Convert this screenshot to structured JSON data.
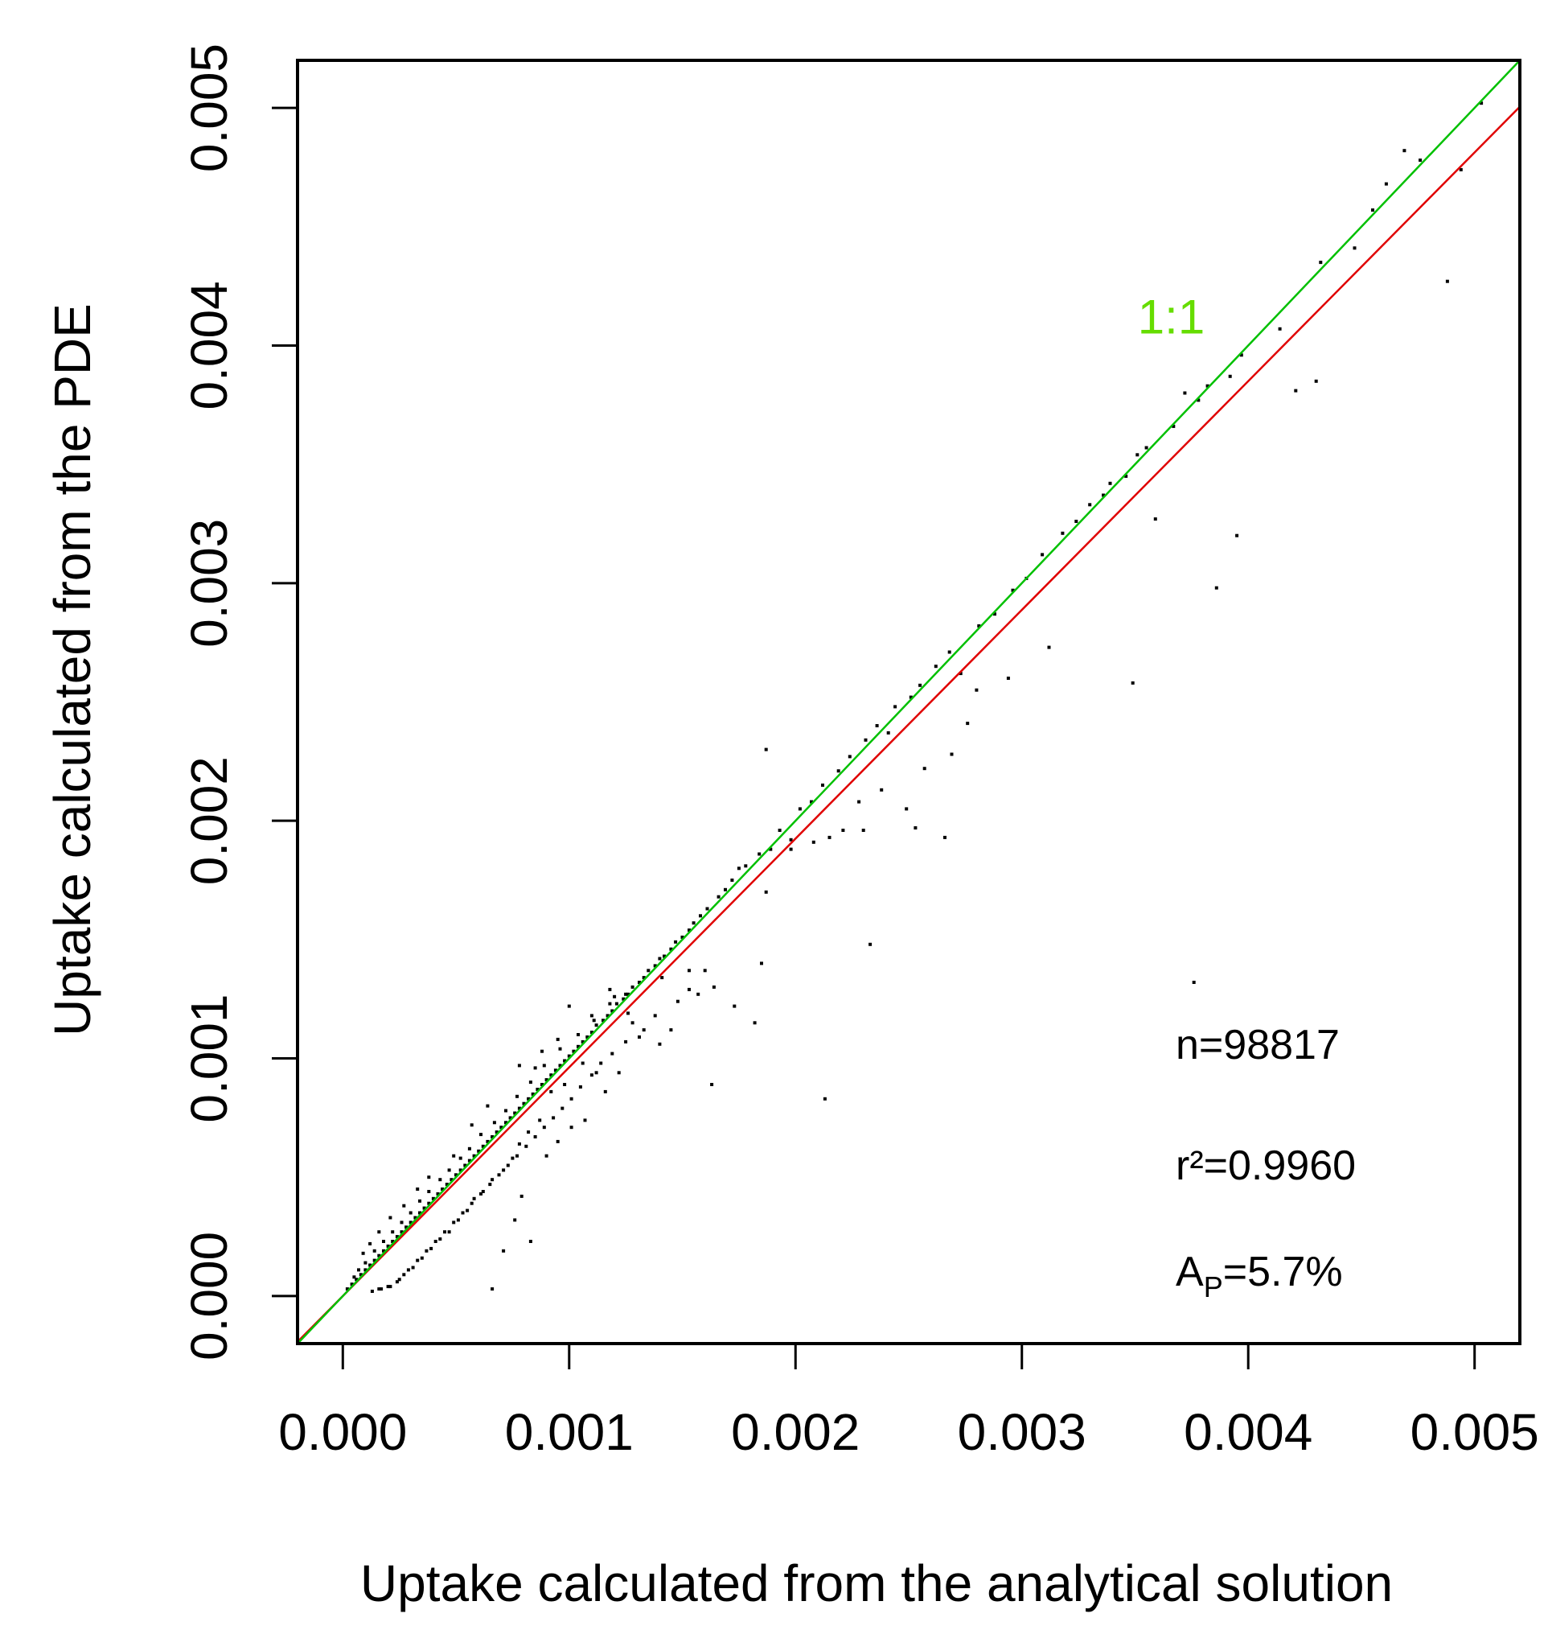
{
  "chart_data": {
    "type": "scatter",
    "xlabel": "Uptake calculated from the analytical solution",
    "ylabel": "Uptake calculated from the PDE",
    "xlim": [
      -0.0002,
      0.0052
    ],
    "ylim": [
      -0.0002,
      0.0052
    ],
    "x_ticks": [
      "0.000",
      "0.001",
      "0.002",
      "0.003",
      "0.004",
      "0.005"
    ],
    "y_ticks": [
      "0.000",
      "0.001",
      "0.002",
      "0.003",
      "0.004",
      "0.005"
    ],
    "grid": false,
    "colors": {
      "points": "#000000",
      "one_to_one": "#00c000",
      "fit": "#e00000",
      "one_to_one_label": "#66dd00"
    },
    "reference_line": {
      "label": "1:1",
      "slope": 1,
      "intercept": 0,
      "label_at": [
        0.00366,
        0.00405
      ]
    },
    "fit_line": {
      "slope": 0.9625,
      "intercept": 0
    },
    "annotations": {
      "n": "n=98817",
      "r2": "r²=0.9960",
      "ap_main": "A",
      "ap_sub": "P",
      "ap_rest": "=5.7%"
    },
    "points": [
      [
        0.00503,
        0.00502
      ],
      [
        0.00494,
        0.00474
      ],
      [
        0.00488,
        0.00427
      ],
      [
        0.00476,
        0.00478
      ],
      [
        0.00469,
        0.00482
      ],
      [
        0.00461,
        0.00468
      ],
      [
        0.00455,
        0.00457
      ],
      [
        0.00447,
        0.00441
      ],
      [
        0.00432,
        0.00435
      ],
      [
        0.0043,
        0.00385
      ],
      [
        0.00421,
        0.00381
      ],
      [
        0.00414,
        0.00407
      ],
      [
        0.00397,
        0.00396
      ],
      [
        0.00395,
        0.0032
      ],
      [
        0.00392,
        0.00387
      ],
      [
        0.00386,
        0.00298
      ],
      [
        0.00382,
        0.00383
      ],
      [
        0.00378,
        0.00377
      ],
      [
        0.00376,
        0.00132
      ],
      [
        0.00372,
        0.0038
      ],
      [
        0.00367,
        0.00366
      ],
      [
        0.00359,
        0.00327
      ],
      [
        0.00355,
        0.00357
      ],
      [
        0.00351,
        0.00354
      ],
      [
        0.00349,
        0.00258
      ],
      [
        0.00346,
        0.00345
      ],
      [
        0.00339,
        0.00342
      ],
      [
        0.00336,
        0.00337
      ],
      [
        0.0033,
        0.00333
      ],
      [
        0.00324,
        0.00326
      ],
      [
        0.00318,
        0.00321
      ],
      [
        0.00312,
        0.00273
      ],
      [
        0.00309,
        0.00312
      ],
      [
        0.00302,
        0.00302
      ],
      [
        0.00296,
        0.00297
      ],
      [
        0.00288,
        0.00287
      ],
      [
        0.00281,
        0.00282
      ],
      [
        0.00273,
        0.00262
      ],
      [
        0.00268,
        0.00271
      ],
      [
        0.00266,
        0.00193
      ],
      [
        0.00262,
        0.00265
      ],
      [
        0.00255,
        0.00257
      ],
      [
        0.00253,
        0.00197
      ],
      [
        0.00251,
        0.00252
      ],
      [
        0.00244,
        0.00248
      ],
      [
        0.00241,
        0.00237
      ],
      [
        0.00236,
        0.0024
      ],
      [
        0.00233,
        0.00148
      ],
      [
        0.00231,
        0.00234
      ],
      [
        0.00228,
        0.00208
      ],
      [
        0.00224,
        0.00227
      ],
      [
        0.00219,
        0.00221
      ],
      [
        0.00213,
        0.00083
      ],
      [
        0.00212,
        0.00215
      ],
      [
        0.00207,
        0.00208
      ],
      [
        0.00202,
        0.00205
      ],
      [
        0.00198,
        0.00192
      ],
      [
        0.00193,
        0.00196
      ],
      [
        0.00189,
        0.00188
      ],
      [
        0.00187,
        0.0023
      ],
      [
        0.00184,
        0.00186
      ],
      [
        0.00182,
        0.00115
      ],
      [
        0.00178,
        0.00181
      ],
      [
        0.00175,
        0.0018
      ],
      [
        0.00172,
        0.00175
      ],
      [
        0.00169,
        0.00171
      ],
      [
        0.00166,
        0.00168
      ],
      [
        0.00163,
        0.00089
      ],
      [
        0.00161,
        0.00163
      ],
      [
        0.00158,
        0.0016
      ],
      [
        0.00155,
        0.00157
      ],
      [
        0.00153,
        0.00154
      ],
      [
        0.0015,
        0.00151
      ],
      [
        0.00147,
        0.00149
      ],
      [
        0.00145,
        0.00146
      ],
      [
        0.00142,
        0.00143
      ],
      [
        0.0014,
        0.00142
      ],
      [
        0.00138,
        0.00139
      ],
      [
        0.00135,
        0.00137
      ],
      [
        0.00133,
        0.00134
      ],
      [
        0.00131,
        0.00132
      ],
      [
        0.00128,
        0.0013
      ],
      [
        0.00126,
        0.00127
      ],
      [
        0.00124,
        0.00125
      ],
      [
        0.00121,
        0.00123
      ],
      [
        0.00119,
        0.0012
      ],
      [
        0.00117,
        0.00118
      ],
      [
        0.00115,
        0.00116
      ],
      [
        0.00112,
        0.00114
      ],
      [
        0.0011,
        0.00111
      ],
      [
        0.00108,
        0.00109
      ],
      [
        0.00106,
        0.00107
      ],
      [
        0.00104,
        0.00105
      ],
      [
        0.00102,
        0.00103
      ],
      [
        0.001,
        0.00101
      ],
      [
        0.00098,
        0.00099
      ],
      [
        0.00096,
        0.00097
      ],
      [
        0.00094,
        0.00095
      ],
      [
        0.00092,
        0.00093
      ],
      [
        0.0009,
        0.00091
      ],
      [
        0.00088,
        0.00089
      ],
      [
        0.00086,
        0.00087
      ],
      [
        0.00084,
        0.00085
      ],
      [
        0.00082,
        0.00083
      ],
      [
        0.0008,
        0.00081
      ],
      [
        0.00078,
        0.00079
      ],
      [
        0.00076,
        0.00077
      ],
      [
        0.00074,
        0.00075
      ],
      [
        0.00072,
        0.00073
      ],
      [
        0.0007,
        0.00071
      ],
      [
        0.00068,
        0.00069
      ],
      [
        0.00066,
        0.00067
      ],
      [
        0.00064,
        0.00065
      ],
      [
        0.00062,
        0.00063
      ],
      [
        0.0006,
        0.00061
      ],
      [
        0.00058,
        0.00059
      ],
      [
        0.00056,
        0.00057
      ],
      [
        0.00054,
        0.00055
      ],
      [
        0.00052,
        0.00053
      ],
      [
        0.0005,
        0.00051
      ],
      [
        0.00048,
        0.00049
      ],
      [
        0.00046,
        0.00047
      ],
      [
        0.00044,
        0.00045
      ],
      [
        0.00042,
        0.00043
      ],
      [
        0.0004,
        0.00041
      ],
      [
        0.00038,
        0.00039
      ],
      [
        0.00036,
        0.00037
      ],
      [
        0.00034,
        0.00035
      ],
      [
        0.00032,
        0.00033
      ],
      [
        0.0003,
        0.00031
      ],
      [
        0.00028,
        0.00029
      ],
      [
        0.00026,
        0.00027
      ],
      [
        0.00024,
        0.00025
      ],
      [
        0.00022,
        0.00023
      ],
      [
        0.0002,
        0.00021
      ],
      [
        0.00018,
        0.00019
      ],
      [
        0.00016,
        0.00017
      ],
      [
        0.00014,
        0.00015
      ],
      [
        0.00012,
        0.00013
      ],
      [
        0.0001,
        0.00011
      ],
      [
        8e-05,
        9e-05
      ],
      [
        6e-05,
        7e-05
      ],
      [
        4e-05,
        5e-05
      ],
      [
        2e-05,
        3e-05
      ],
      [
        0.00141,
        0.00134
      ],
      [
        0.00128,
        0.00115
      ],
      [
        0.00125,
        0.00107
      ],
      [
        0.00119,
        0.00102
      ],
      [
        0.00114,
        0.00098
      ],
      [
        0.0011,
        0.00093
      ],
      [
        0.00105,
        0.00088
      ],
      [
        0.00101,
        0.00083
      ],
      [
        0.00097,
        0.00079
      ],
      [
        0.00093,
        0.00075
      ],
      [
        0.00089,
        0.00071
      ],
      [
        0.00085,
        0.00067
      ],
      [
        0.00081,
        0.00063
      ],
      [
        0.00077,
        0.00059
      ],
      [
        0.00073,
        0.00055
      ],
      [
        0.00069,
        0.00051
      ],
      [
        0.00065,
        0.00047
      ],
      [
        0.00061,
        0.00043
      ],
      [
        0.00057,
        0.00039
      ],
      [
        0.00053,
        0.00035
      ],
      [
        0.00049,
        0.00031
      ],
      [
        0.00045,
        0.00027
      ],
      [
        0.00041,
        0.00023
      ],
      [
        0.00037,
        0.00019
      ],
      [
        0.00033,
        0.00015
      ],
      [
        0.00029,
        0.00011
      ],
      [
        0.00025,
        7e-05
      ],
      [
        0.00021,
        4e-05
      ],
      [
        0.00017,
        3e-05
      ],
      [
        0.00013,
        2e-05
      ],
      [
        0.0016,
        0.00137
      ],
      [
        0.00153,
        0.00129
      ],
      [
        0.00148,
        0.00124
      ],
      [
        0.00138,
        0.00118
      ],
      [
        0.00133,
        0.00112
      ],
      [
        0.00126,
        0.00119
      ],
      [
        0.00112,
        0.00094
      ],
      [
        0.00106,
        0.00098
      ],
      [
        0.00098,
        0.00089
      ],
      [
        0.00092,
        0.00086
      ],
      [
        0.00087,
        0.00074
      ],
      [
        0.00082,
        0.00069
      ],
      [
        0.00078,
        0.00064
      ],
      [
        0.00075,
        0.00058
      ],
      [
        0.00071,
        0.00053
      ],
      [
        0.00066,
        0.00049
      ],
      [
        0.00062,
        0.00044
      ],
      [
        0.00058,
        0.00041
      ],
      [
        0.00055,
        0.00036
      ],
      [
        0.00051,
        0.00032
      ],
      [
        0.00047,
        0.00027
      ],
      [
        0.00043,
        0.00024
      ],
      [
        0.00039,
        0.0002
      ],
      [
        0.00035,
        0.00016
      ],
      [
        0.00031,
        0.00012
      ],
      [
        0.00027,
        9e-05
      ],
      [
        0.00024,
        6e-05
      ],
      [
        0.0002,
        4e-05
      ],
      [
        0.00016,
        3e-05
      ],
      [
        0.00066,
        3e-05
      ],
      [
        0.00079,
        0.00042
      ],
      [
        0.00083,
        0.00023
      ],
      [
        0.00076,
        0.00032
      ],
      [
        0.00071,
        0.00019
      ],
      [
        0.0009,
        0.00059
      ],
      [
        0.00095,
        0.00065
      ],
      [
        0.00101,
        0.00071
      ],
      [
        0.00107,
        0.00074
      ],
      [
        0.00116,
        0.00086
      ],
      [
        0.00122,
        0.00094
      ],
      [
        0.00131,
        0.00109
      ],
      [
        0.0014,
        0.00106
      ],
      [
        0.00145,
        0.00112
      ],
      [
        0.00157,
        0.00127
      ],
      [
        0.00153,
        0.00137
      ],
      [
        0.00164,
        0.0013
      ],
      [
        0.00173,
        0.00122
      ],
      [
        0.00185,
        0.0014
      ],
      [
        0.00187,
        0.0017
      ],
      [
        0.00198,
        0.00188
      ],
      [
        0.00208,
        0.00191
      ],
      [
        0.00215,
        0.00193
      ],
      [
        0.00221,
        0.00196
      ],
      [
        0.0023,
        0.00196
      ],
      [
        0.00238,
        0.00213
      ],
      [
        0.00249,
        0.00205
      ],
      [
        0.00257,
        0.00222
      ],
      [
        0.00269,
        0.00228
      ],
      [
        0.00276,
        0.00241
      ],
      [
        0.0028,
        0.00255
      ],
      [
        0.00294,
        0.0026
      ],
      [
        0.0012,
        0.00126
      ],
      [
        0.00118,
        0.00123
      ],
      [
        0.00111,
        0.00116
      ],
      [
        0.00104,
        0.0011
      ],
      [
        0.00096,
        0.00104
      ],
      [
        0.00089,
        0.00097
      ],
      [
        0.00083,
        0.0009
      ],
      [
        0.00077,
        0.00084
      ],
      [
        0.00072,
        0.00078
      ],
      [
        0.00067,
        0.00073
      ],
      [
        0.00061,
        0.00068
      ],
      [
        0.00056,
        0.00062
      ],
      [
        0.00052,
        0.00058
      ],
      [
        0.00047,
        0.00053
      ],
      [
        0.00043,
        0.00049
      ],
      [
        0.00038,
        0.00044
      ],
      [
        0.00034,
        0.0004
      ],
      [
        0.0003,
        0.00035
      ],
      [
        0.00026,
        0.00031
      ],
      [
        0.00022,
        0.00027
      ],
      [
        0.00018,
        0.00023
      ],
      [
        0.00014,
        0.00019
      ],
      [
        0.0001,
        0.00014
      ],
      [
        7e-05,
        0.00011
      ],
      [
        5e-05,
        8e-05
      ],
      [
        0.00049,
        0.00059
      ],
      [
        0.00038,
        0.0005
      ],
      [
        0.00033,
        0.00045
      ],
      [
        0.00027,
        0.00038
      ],
      [
        0.00021,
        0.00033
      ],
      [
        0.00016,
        0.00027
      ],
      [
        0.00012,
        0.00022
      ],
      [
        9e-05,
        0.00018
      ],
      [
        0.00078,
        0.00097
      ],
      [
        0.00064,
        0.0008
      ],
      [
        0.00057,
        0.00072
      ],
      [
        0.001,
        0.00122
      ],
      [
        0.00088,
        0.00103
      ],
      [
        0.00125,
        0.00127
      ],
      [
        0.00118,
        0.00129
      ],
      [
        0.0011,
        0.00118
      ],
      [
        0.00095,
        0.00108
      ],
      [
        0.00085,
        0.00096
      ]
    ]
  }
}
